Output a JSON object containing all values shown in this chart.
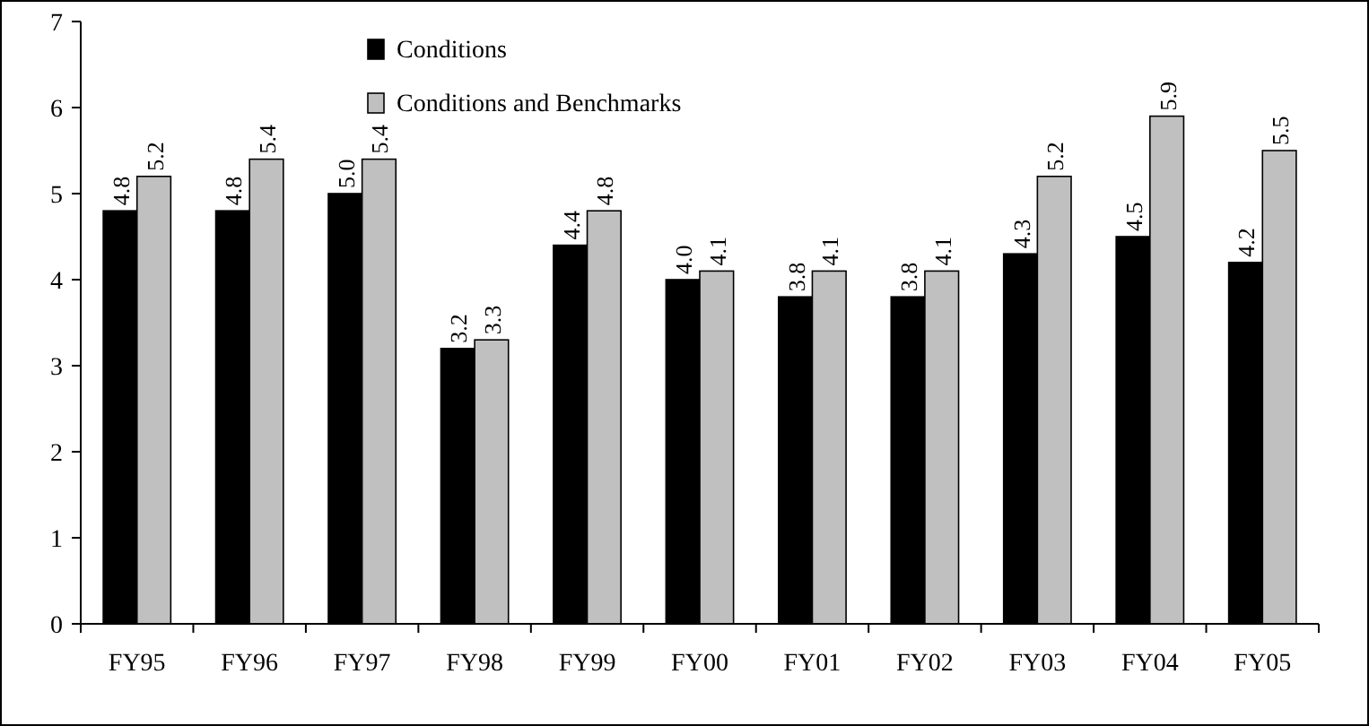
{
  "chart_data": {
    "type": "bar",
    "categories": [
      "FY95",
      "FY96",
      "FY97",
      "FY98",
      "FY99",
      "FY00",
      "FY01",
      "FY02",
      "FY03",
      "FY04",
      "FY05"
    ],
    "series": [
      {
        "name": "Conditions",
        "color": "#000000",
        "values": [
          4.8,
          4.8,
          5.0,
          3.2,
          4.4,
          4.0,
          3.8,
          3.8,
          4.3,
          4.5,
          4.2
        ],
        "value_labels": [
          "4.8",
          "4.8",
          "5.0",
          "3.2",
          "4.4",
          "4.0",
          "3.8",
          "3.8",
          "4.3",
          "4.5",
          "4.2"
        ]
      },
      {
        "name": "Conditions and Benchmarks",
        "color": "#c0c0c0",
        "values": [
          5.2,
          5.4,
          5.4,
          3.3,
          4.8,
          4.1,
          4.1,
          4.1,
          5.2,
          5.9,
          5.5
        ],
        "value_labels": [
          "5.2",
          "5.4",
          "5.4",
          "3.3",
          "4.8",
          "4.1",
          "4.1",
          "4.1",
          "5.2",
          "5.9",
          "5.5"
        ]
      }
    ],
    "ylim": [
      0,
      7
    ],
    "yticks": [
      0,
      1,
      2,
      3,
      4,
      5,
      6,
      7
    ],
    "grid": false,
    "legend": "top"
  }
}
